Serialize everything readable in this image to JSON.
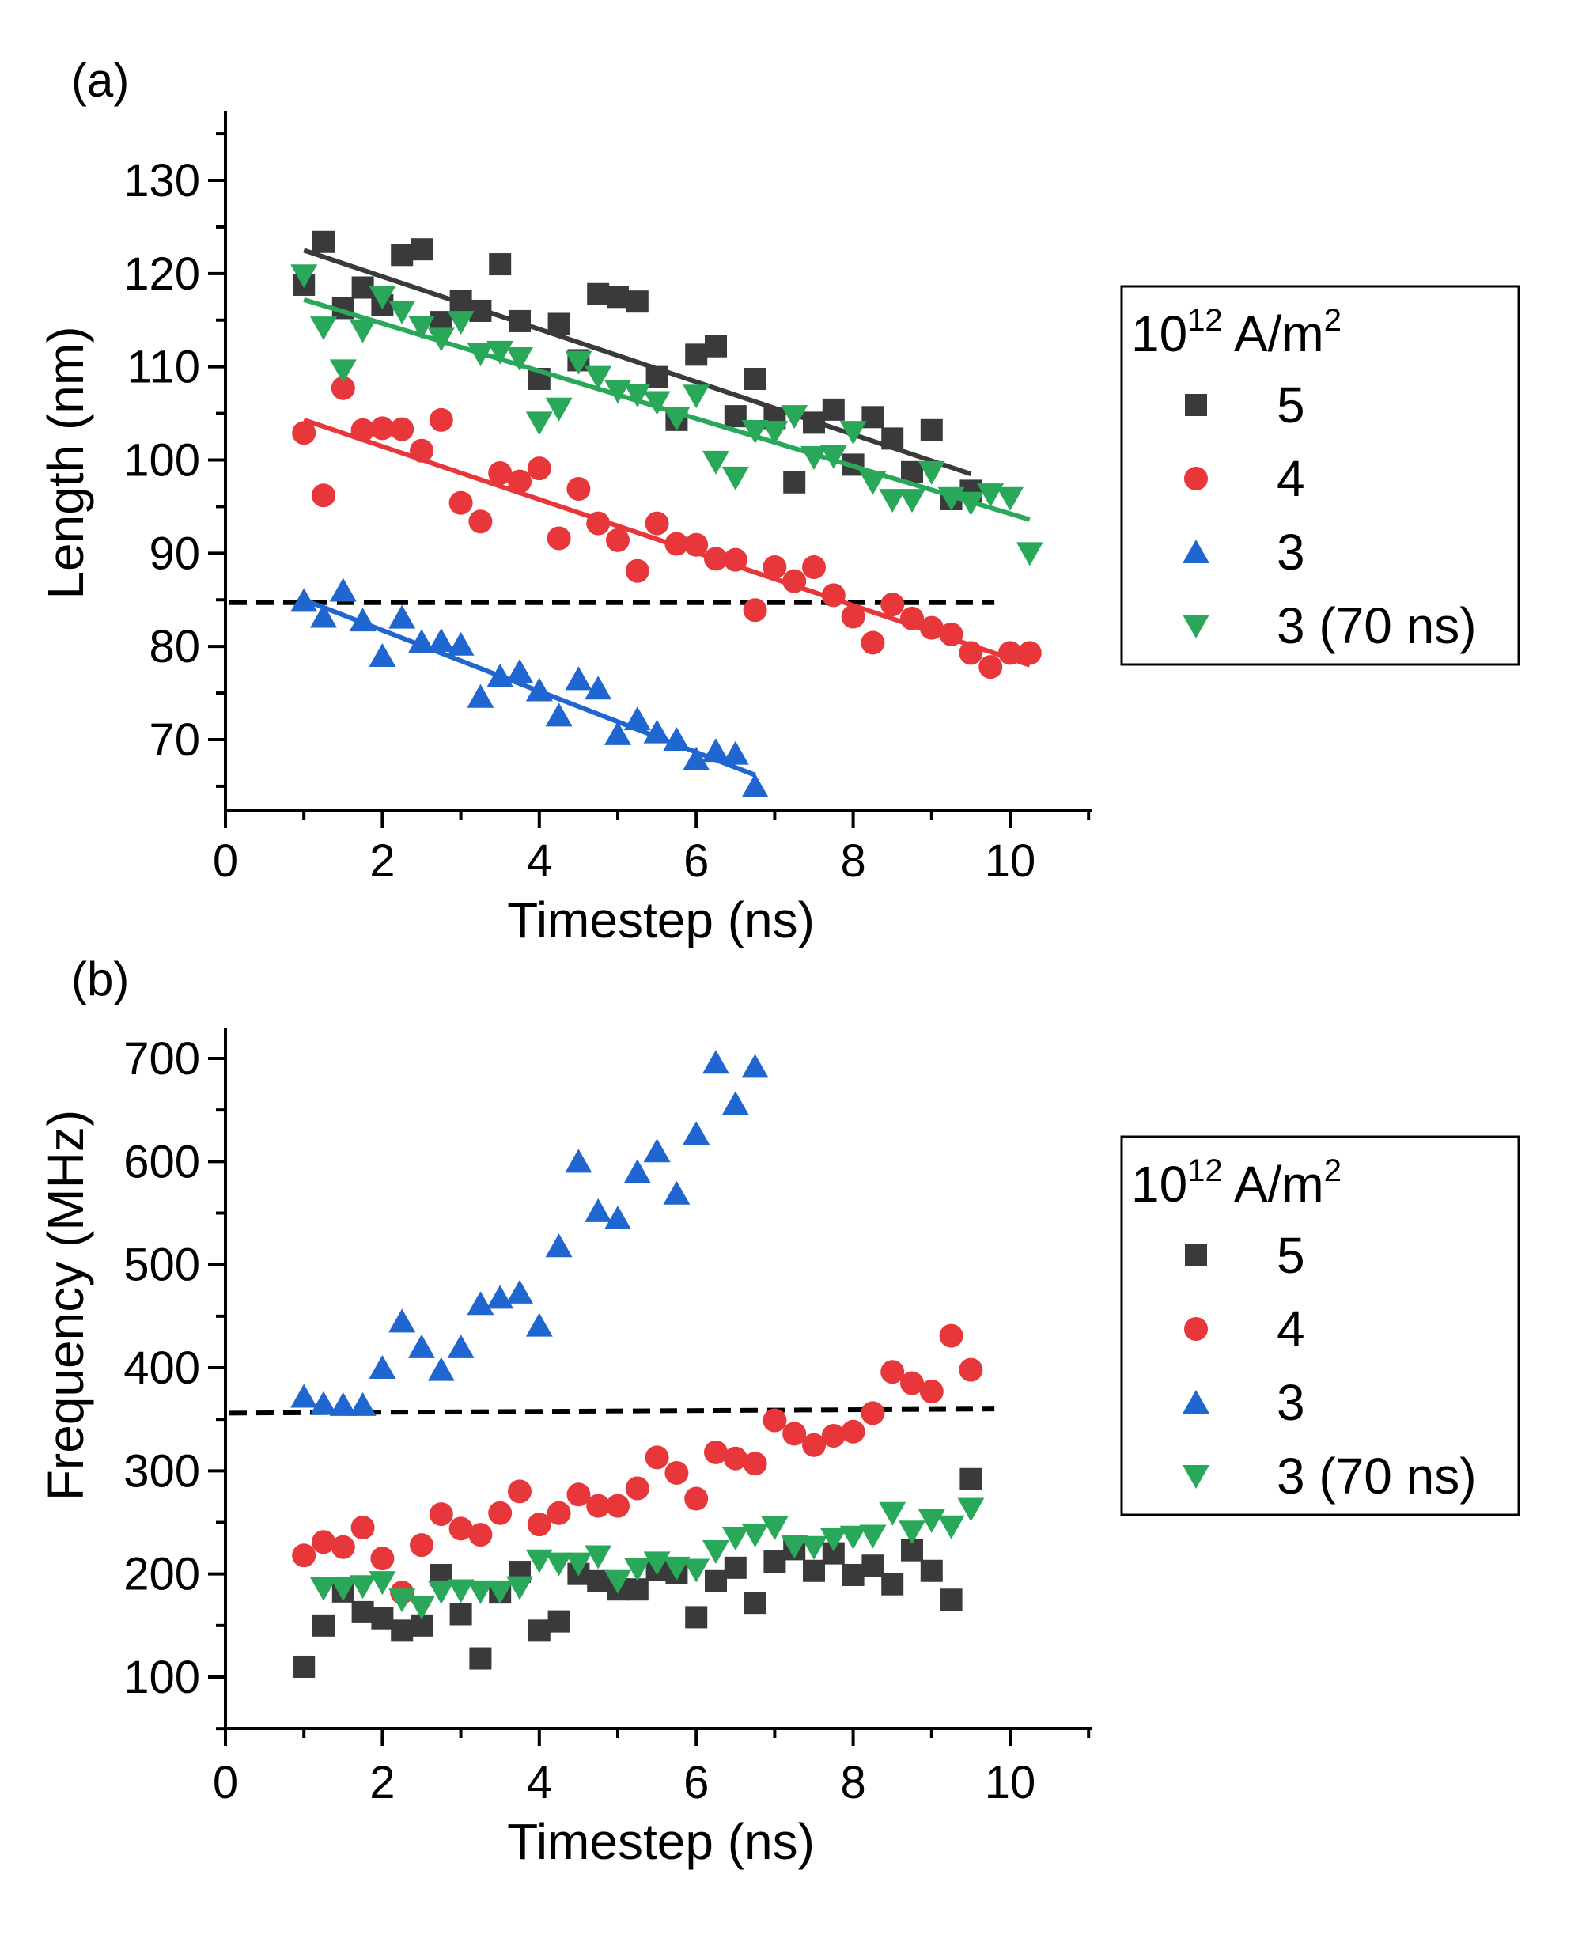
{
  "chart_data": [
    {
      "panel_label": "(a)",
      "type": "scatter",
      "xlabel": "Timestep (ns)",
      "ylabel": "Length (nm)",
      "xlim": [
        0,
        11
      ],
      "ylim": [
        62.5,
        137.5
      ],
      "xticks": [
        0,
        2,
        4,
        6,
        8,
        10
      ],
      "xtick_labels": [
        "0",
        "2",
        "4",
        "6",
        "8",
        "10"
      ],
      "yticks": [
        70,
        80,
        90,
        100,
        110,
        120,
        130
      ],
      "ytick_labels": [
        "70",
        "80",
        "90",
        "100",
        "110",
        "120",
        "130"
      ],
      "legend": {
        "title_base": "10",
        "title_exp": "12",
        "title_unit": " A/m",
        "title_unit_exp": "2",
        "placement": "right"
      },
      "reference_line": {
        "style": "dashed",
        "color": "#000000",
        "x": [
          0.05,
          9.8
        ],
        "y": [
          84.7,
          84.7
        ]
      },
      "series": [
        {
          "name": "5",
          "color": "#3a3a3a",
          "marker": "square",
          "x": [
            1.0,
            1.25,
            1.5,
            1.75,
            2.0,
            2.25,
            2.5,
            2.75,
            3.0,
            3.25,
            3.5,
            3.75,
            4.0,
            4.25,
            4.5,
            4.75,
            5.0,
            5.25,
            5.5,
            5.75,
            6.0,
            6.25,
            6.5,
            6.75,
            7.0,
            7.25,
            7.5,
            7.75,
            8.0,
            8.25,
            8.5,
            8.75,
            9.0,
            9.25,
            9.5
          ],
          "y": [
            118.8,
            123.4,
            116.3,
            118.5,
            116.6,
            122.0,
            122.6,
            114.8,
            117.1,
            116.0,
            121.0,
            114.9,
            108.7,
            114.6,
            110.7,
            117.8,
            117.5,
            117.0,
            108.9,
            104.3,
            111.3,
            112.2,
            104.7,
            108.7,
            104.5,
            97.6,
            104.0,
            105.4,
            99.5,
            104.6,
            102.3,
            98.7,
            103.2,
            95.8,
            96.7
          ],
          "fit": [
            [
              1.0,
              122.5
            ],
            [
              9.5,
              98.5
            ]
          ]
        },
        {
          "name": "4",
          "color": "#e8373b",
          "marker": "circle",
          "x": [
            1.0,
            1.25,
            1.5,
            1.75,
            2.0,
            2.25,
            2.5,
            2.75,
            3.0,
            3.25,
            3.5,
            3.75,
            4.0,
            4.25,
            4.5,
            4.75,
            5.0,
            5.25,
            5.5,
            5.75,
            6.0,
            6.25,
            6.5,
            6.75,
            7.0,
            7.25,
            7.5,
            7.75,
            8.0,
            8.25,
            8.5,
            8.75,
            9.0,
            9.25,
            9.5,
            9.75,
            10.0,
            10.25
          ],
          "y": [
            102.9,
            96.2,
            107.7,
            103.2,
            103.4,
            103.3,
            101.0,
            104.3,
            95.4,
            93.4,
            98.6,
            97.7,
            99.1,
            91.6,
            96.9,
            93.2,
            91.4,
            88.1,
            93.2,
            91.0,
            90.9,
            89.4,
            89.3,
            83.9,
            88.5,
            87.0,
            88.5,
            85.5,
            83.2,
            80.4,
            84.5,
            83.0,
            82.0,
            81.3,
            79.3,
            77.8,
            79.3,
            79.3
          ],
          "fit": [
            [
              1.0,
              104.3
            ],
            [
              10.25,
              78.0
            ]
          ]
        },
        {
          "name": "3",
          "color": "#1f66d1",
          "marker": "triangle-up",
          "x": [
            1.0,
            1.25,
            1.5,
            1.75,
            2.0,
            2.25,
            2.5,
            2.75,
            3.0,
            3.25,
            3.5,
            3.75,
            4.0,
            4.25,
            4.5,
            4.75,
            5.0,
            5.25,
            5.5,
            5.75,
            6.0,
            6.25,
            6.5,
            6.75
          ],
          "y": [
            84.9,
            83.2,
            86.0,
            82.8,
            79.0,
            83.1,
            80.5,
            80.6,
            80.2,
            74.6,
            76.8,
            77.3,
            75.3,
            72.6,
            76.5,
            75.5,
            70.6,
            72.2,
            70.8,
            70.0,
            67.9,
            68.8,
            68.5,
            65.0
          ],
          "fit": [
            [
              1.0,
              85.0
            ],
            [
              6.75,
              66.2
            ]
          ]
        },
        {
          "name": "3 (70 ns)",
          "color": "#2aa85a",
          "marker": "triangle-down",
          "x": [
            1.0,
            1.25,
            1.5,
            1.75,
            2.0,
            2.25,
            2.5,
            2.75,
            3.0,
            3.25,
            3.5,
            3.75,
            4.0,
            4.25,
            4.5,
            4.75,
            5.0,
            5.25,
            5.5,
            5.75,
            6.0,
            6.25,
            6.5,
            6.75,
            7.0,
            7.25,
            7.5,
            7.75,
            8.0,
            8.25,
            8.5,
            8.75,
            9.0,
            9.25,
            9.5,
            9.75,
            10.0,
            10.25
          ],
          "y": [
            119.8,
            114.2,
            109.6,
            113.9,
            117.5,
            115.9,
            114.3,
            113.0,
            114.8,
            111.4,
            111.6,
            110.9,
            104.0,
            105.5,
            110.5,
            108.9,
            107.4,
            107.0,
            106.2,
            104.5,
            106.9,
            99.8,
            98.1,
            103.1,
            103.0,
            104.7,
            100.3,
            100.4,
            103.0,
            97.6,
            95.7,
            95.7,
            98.7,
            95.9,
            95.4,
            96.3,
            95.9,
            90.0
          ],
          "fit": [
            [
              1.0,
              117.2
            ],
            [
              10.25,
              93.6
            ]
          ]
        }
      ]
    },
    {
      "panel_label": "(b)",
      "type": "scatter",
      "xlabel": "Timestep (ns)",
      "ylabel": "Frequency (MHz)",
      "xlim": [
        0,
        11
      ],
      "ylim": [
        50,
        725
      ],
      "xticks": [
        0,
        2,
        4,
        6,
        8,
        10
      ],
      "xtick_labels": [
        "0",
        "2",
        "4",
        "6",
        "8",
        "10"
      ],
      "yticks": [
        100,
        200,
        300,
        400,
        500,
        600,
        700
      ],
      "ytick_labels": [
        "100",
        "200",
        "300",
        "400",
        "500",
        "600",
        "700"
      ],
      "legend": {
        "title_base": "10",
        "title_exp": "12",
        "title_unit": " A/m",
        "title_unit_exp": "2",
        "placement": "right"
      },
      "reference_line": {
        "style": "dashed",
        "color": "#000000",
        "x": [
          0.05,
          9.8
        ],
        "y": [
          356,
          360
        ]
      },
      "series": [
        {
          "name": "5",
          "color": "#3a3a3a",
          "marker": "square",
          "x": [
            1.0,
            1.25,
            1.5,
            1.75,
            2.0,
            2.25,
            2.5,
            2.75,
            3.0,
            3.25,
            3.5,
            3.75,
            4.0,
            4.25,
            4.5,
            4.75,
            5.0,
            5.25,
            5.5,
            5.75,
            6.0,
            6.25,
            6.5,
            6.75,
            7.0,
            7.25,
            7.5,
            7.75,
            8.0,
            8.25,
            8.5,
            8.75,
            9.0,
            9.25,
            9.5
          ],
          "y": [
            110,
            150,
            183,
            163,
            157,
            145,
            150,
            199,
            161,
            118,
            182,
            202,
            145,
            154,
            200,
            193,
            185,
            185,
            204,
            201,
            158,
            193,
            206,
            172,
            212,
            224,
            203,
            220,
            199,
            208,
            190,
            223,
            203,
            175,
            292
          ]
        },
        {
          "name": "4",
          "color": "#e8373b",
          "marker": "circle",
          "x": [
            1.0,
            1.25,
            1.5,
            1.75,
            2.0,
            2.25,
            2.5,
            2.75,
            3.0,
            3.25,
            3.5,
            3.75,
            4.0,
            4.25,
            4.5,
            4.75,
            5.0,
            5.25,
            5.5,
            5.75,
            6.0,
            6.25,
            6.5,
            6.75,
            7.0,
            7.25,
            7.5,
            7.75,
            8.0,
            8.25,
            8.5,
            8.75,
            9.0,
            9.25,
            9.5
          ],
          "y": [
            218,
            231,
            226,
            245,
            215,
            182,
            228,
            258,
            244,
            238,
            259,
            280,
            248,
            259,
            277,
            266,
            266,
            283,
            313,
            298,
            273,
            318,
            312,
            307,
            349,
            336,
            325,
            334,
            338,
            356,
            396,
            385,
            377,
            431,
            398
          ]
        },
        {
          "name": "3",
          "color": "#1f66d1",
          "marker": "triangle-up",
          "x": [
            1.0,
            1.25,
            1.5,
            1.75,
            2.0,
            2.25,
            2.5,
            2.75,
            3.0,
            3.25,
            3.5,
            3.75,
            4.0,
            4.25,
            4.5,
            4.75,
            5.0,
            5.25,
            5.5,
            5.75,
            6.0,
            6.25,
            6.5,
            6.75
          ],
          "y": [
            372,
            365,
            364,
            364,
            400,
            445,
            420,
            398,
            420,
            462,
            468,
            473,
            441,
            518,
            600,
            552,
            545,
            590,
            610,
            569,
            627,
            696,
            656,
            692
          ]
        },
        {
          "name": "3 (70 ns)",
          "color": "#2aa85a",
          "marker": "triangle-down",
          "x": [
            1.25,
            1.5,
            1.75,
            2.0,
            2.25,
            2.5,
            2.75,
            3.0,
            3.25,
            3.5,
            3.75,
            4.0,
            4.25,
            4.5,
            4.75,
            5.0,
            5.25,
            5.5,
            5.75,
            6.0,
            6.25,
            6.5,
            6.75,
            7.0,
            7.25,
            7.5,
            7.75,
            8.0,
            8.25,
            8.5,
            8.75,
            9.0,
            9.25,
            9.5
          ],
          "y": [
            186,
            186,
            188,
            192,
            175,
            168,
            183,
            184,
            183,
            183,
            187,
            213,
            210,
            210,
            217,
            193,
            205,
            211,
            206,
            204,
            222,
            235,
            238,
            245,
            227,
            226,
            234,
            236,
            237,
            259,
            241,
            252,
            246,
            263
          ]
        }
      ]
    }
  ]
}
